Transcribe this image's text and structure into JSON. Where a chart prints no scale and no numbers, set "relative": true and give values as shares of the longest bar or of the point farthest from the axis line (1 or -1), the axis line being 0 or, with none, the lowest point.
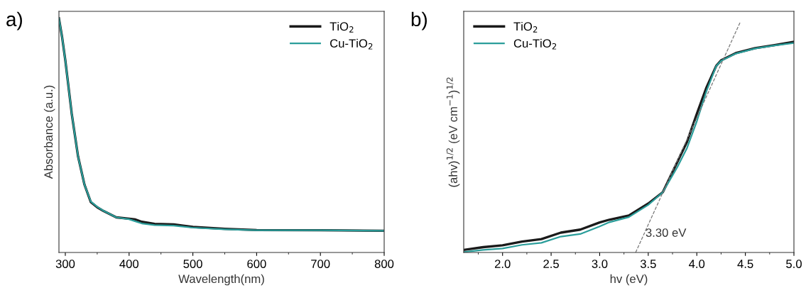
{
  "chart_data": [
    {
      "type": "line",
      "title": "a)",
      "xlabel": "Wavelength(nm)",
      "ylabel": "Absorbance (a.u.)",
      "relative": true,
      "xlim": [
        290,
        800
      ],
      "xticks": [
        300,
        400,
        500,
        600,
        700,
        800
      ],
      "legend": "top right",
      "grid": false,
      "series": [
        {
          "name": "TiO$_{2}$",
          "color": "#1a1a1a",
          "x": [
            290,
            295,
            300,
            310,
            320,
            330,
            340,
            350,
            360,
            380,
            400,
            410,
            420,
            440,
            470,
            500,
            550,
            600,
            700,
            800
          ],
          "values": [
            1.0,
            0.919,
            0.821,
            0.594,
            0.41,
            0.29,
            0.215,
            0.193,
            0.177,
            0.15,
            0.144,
            0.141,
            0.131,
            0.122,
            0.12,
            0.109,
            0.101,
            0.096,
            0.095,
            0.093
          ]
        },
        {
          "name": "Cu-TiO$_{2}$",
          "color": "#2a9d9a",
          "x": [
            290,
            295,
            300,
            310,
            320,
            330,
            340,
            350,
            360,
            380,
            400,
            410,
            420,
            440,
            470,
            500,
            550,
            600,
            700,
            800
          ],
          "values": [
            1.0,
            0.919,
            0.821,
            0.594,
            0.41,
            0.29,
            0.218,
            0.195,
            0.178,
            0.15,
            0.142,
            0.133,
            0.124,
            0.117,
            0.115,
            0.106,
            0.099,
            0.095,
            0.095,
            0.093
          ]
        }
      ]
    },
    {
      "type": "line",
      "title": "b)",
      "xlabel": "hv (eV)",
      "ylabel": "(ahv)$^{1/2}$ (eV cm$^{−1}$)$^{1/2}$",
      "relative": true,
      "xlim": [
        1.6,
        5.0
      ],
      "xticks": [
        {
          "value": 2.0,
          "label": "2.0"
        },
        {
          "value": 2.5,
          "label": "2.5"
        },
        {
          "value": 3.0,
          "label": "3.0"
        },
        {
          "value": 3.5,
          "label": "3.5"
        },
        {
          "value": 4.0,
          "label": "4.0"
        },
        {
          "value": 4.5,
          "label": "4.5"
        },
        {
          "value": 5.0,
          "label": "5.0"
        }
      ],
      "legend": "top left",
      "grid": false,
      "annotations": [
        {
          "text": "3.30 eV",
          "x": 3.37,
          "y": 0
        }
      ],
      "series": [
        {
          "name": "TiO$_{2}$",
          "color": "#1a1a1a",
          "x": [
            1.6,
            1.8,
            2.0,
            2.2,
            2.4,
            2.6,
            2.8,
            3.0,
            3.1,
            3.3,
            3.5,
            3.65,
            3.8,
            3.9,
            4.0,
            4.1,
            4.2,
            4.25,
            4.4,
            4.6,
            4.8,
            5.0
          ],
          "values": [
            0.011,
            0.023,
            0.031,
            0.047,
            0.058,
            0.086,
            0.099,
            0.13,
            0.142,
            0.16,
            0.212,
            0.261,
            0.392,
            0.48,
            0.6,
            0.715,
            0.808,
            0.832,
            0.863,
            0.885,
            0.898,
            0.912
          ]
        },
        {
          "name": "Cu-TiO$_{2}$",
          "color": "#2a9d9a",
          "x": [
            1.6,
            1.8,
            2.0,
            2.2,
            2.4,
            2.6,
            2.8,
            3.0,
            3.1,
            3.3,
            3.5,
            3.65,
            3.8,
            3.9,
            4.0,
            4.1,
            4.2,
            4.25,
            4.4,
            4.6,
            4.8,
            5.0
          ],
          "values": [
            0.002,
            0.011,
            0.017,
            0.033,
            0.042,
            0.069,
            0.08,
            0.113,
            0.131,
            0.153,
            0.206,
            0.261,
            0.37,
            0.453,
            0.568,
            0.699,
            0.807,
            0.83,
            0.861,
            0.883,
            0.896,
            0.907
          ]
        },
        {
          "type": "line",
          "color": "#777777",
          "line_style": "dashed",
          "x": [
            3.37,
            4.45
          ],
          "values": [
            0,
            1
          ]
        }
      ]
    }
  ]
}
